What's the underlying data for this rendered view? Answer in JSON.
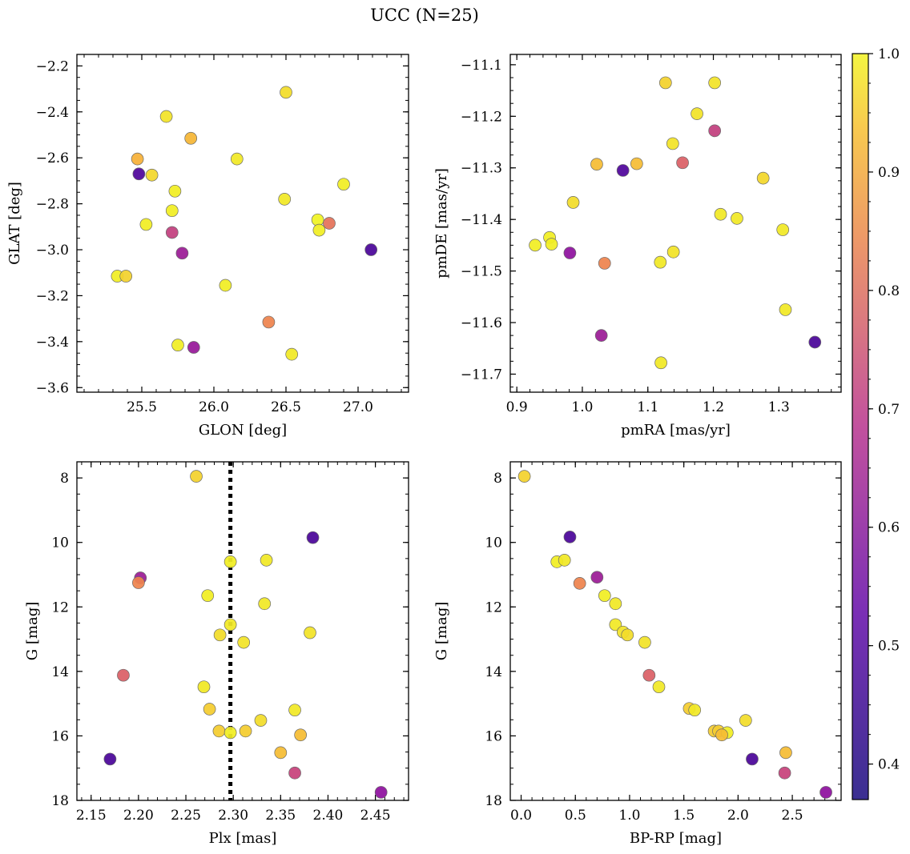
{
  "figure": {
    "title": "UCC (N=25)"
  },
  "chart_data": [
    {
      "type": "scatter",
      "xlabel": "GLON [deg]",
      "ylabel": "GLAT [deg]",
      "xlim": [
        25.05,
        27.35
      ],
      "ylim": [
        -3.62,
        -2.15
      ],
      "xticks": [
        25.5,
        26.0,
        26.5,
        27.0
      ],
      "yticks": [
        -3.6,
        -3.4,
        -3.2,
        -3.0,
        -2.8,
        -2.6,
        -2.4,
        -2.2
      ],
      "xticklabels": [
        "25.5",
        "26.0",
        "26.5",
        "27.0"
      ],
      "yticklabels": [
        "−3.6",
        "−3.4",
        "−3.2",
        "−3.0",
        "−2.8",
        "−2.6",
        "−2.4",
        "−2.2"
      ],
      "points": [
        {
          "x": 26.5,
          "y": -2.315,
          "c": 0.95
        },
        {
          "x": 25.67,
          "y": -2.42,
          "c": 0.96
        },
        {
          "x": 25.84,
          "y": -2.515,
          "c": 0.88
        },
        {
          "x": 26.16,
          "y": -2.605,
          "c": 0.97
        },
        {
          "x": 25.47,
          "y": -2.605,
          "c": 0.87
        },
        {
          "x": 25.48,
          "y": -2.67,
          "c": 0.39
        },
        {
          "x": 25.57,
          "y": -2.675,
          "c": 0.94
        },
        {
          "x": 26.9,
          "y": -2.715,
          "c": 0.98
        },
        {
          "x": 25.73,
          "y": -2.745,
          "c": 0.98
        },
        {
          "x": 26.49,
          "y": -2.78,
          "c": 0.97
        },
        {
          "x": 25.71,
          "y": -2.83,
          "c": 0.98
        },
        {
          "x": 26.72,
          "y": -2.87,
          "c": 0.99
        },
        {
          "x": 26.8,
          "y": -2.885,
          "c": 0.74
        },
        {
          "x": 25.53,
          "y": -2.89,
          "c": 0.98
        },
        {
          "x": 26.73,
          "y": -2.915,
          "c": 0.98
        },
        {
          "x": 25.71,
          "y": -2.925,
          "c": 0.62
        },
        {
          "x": 27.09,
          "y": -3.0,
          "c": 0.38
        },
        {
          "x": 25.78,
          "y": -3.015,
          "c": 0.53
        },
        {
          "x": 25.33,
          "y": -3.115,
          "c": 0.98
        },
        {
          "x": 25.39,
          "y": -3.115,
          "c": 0.93
        },
        {
          "x": 26.08,
          "y": -3.155,
          "c": 0.98
        },
        {
          "x": 26.38,
          "y": -3.315,
          "c": 0.78
        },
        {
          "x": 25.75,
          "y": -3.415,
          "c": 0.98
        },
        {
          "x": 25.86,
          "y": -3.425,
          "c": 0.52
        },
        {
          "x": 26.54,
          "y": -3.455,
          "c": 0.97
        }
      ]
    },
    {
      "type": "scatter",
      "xlabel": "pmRA [mas/yr]",
      "ylabel": "pmDE [mas/yr]",
      "xlim": [
        0.89,
        1.395
      ],
      "ylim": [
        -11.735,
        -11.08
      ],
      "xticks": [
        0.9,
        1.0,
        1.1,
        1.2,
        1.3
      ],
      "yticks": [
        -11.7,
        -11.6,
        -11.5,
        -11.4,
        -11.3,
        -11.2,
        -11.1
      ],
      "xticklabels": [
        "0.9",
        "1.0",
        "1.1",
        "1.2",
        "1.3"
      ],
      "yticklabels": [
        "−11.7",
        "−11.6",
        "−11.5",
        "−11.4",
        "−11.3",
        "−11.2",
        "−11.1"
      ],
      "points": [
        {
          "x": 1.127,
          "y": -11.135,
          "c": 0.93
        },
        {
          "x": 1.202,
          "y": -11.135,
          "c": 0.96
        },
        {
          "x": 1.175,
          "y": -11.195,
          "c": 0.96
        },
        {
          "x": 1.202,
          "y": -11.228,
          "c": 0.62
        },
        {
          "x": 1.138,
          "y": -11.253,
          "c": 0.96
        },
        {
          "x": 1.022,
          "y": -11.293,
          "c": 0.89
        },
        {
          "x": 1.083,
          "y": -11.292,
          "c": 0.89
        },
        {
          "x": 1.153,
          "y": -11.29,
          "c": 0.7
        },
        {
          "x": 1.062,
          "y": -11.305,
          "c": 0.39
        },
        {
          "x": 1.276,
          "y": -11.32,
          "c": 0.94
        },
        {
          "x": 0.986,
          "y": -11.367,
          "c": 0.95
        },
        {
          "x": 1.211,
          "y": -11.39,
          "c": 0.97
        },
        {
          "x": 1.236,
          "y": -11.398,
          "c": 0.97
        },
        {
          "x": 1.306,
          "y": -11.42,
          "c": 0.97
        },
        {
          "x": 0.95,
          "y": -11.435,
          "c": 0.98
        },
        {
          "x": 0.928,
          "y": -11.45,
          "c": 0.98
        },
        {
          "x": 0.953,
          "y": -11.448,
          "c": 0.98
        },
        {
          "x": 0.981,
          "y": -11.465,
          "c": 0.5
        },
        {
          "x": 1.139,
          "y": -11.463,
          "c": 0.96
        },
        {
          "x": 1.119,
          "y": -11.483,
          "c": 0.97
        },
        {
          "x": 1.034,
          "y": -11.485,
          "c": 0.78
        },
        {
          "x": 1.31,
          "y": -11.575,
          "c": 0.97
        },
        {
          "x": 1.029,
          "y": -11.625,
          "c": 0.53
        },
        {
          "x": 1.355,
          "y": -11.638,
          "c": 0.38
        },
        {
          "x": 1.12,
          "y": -11.678,
          "c": 0.97
        }
      ]
    },
    {
      "type": "scatter",
      "xlabel": "Plx [mas]",
      "ylabel": "G [mag]",
      "xlim": [
        2.135,
        2.485
      ],
      "ylim": [
        18,
        7.5
      ],
      "y_inverted": true,
      "xticks": [
        2.15,
        2.2,
        2.25,
        2.3,
        2.35,
        2.4,
        2.45
      ],
      "yticks": [
        8,
        10,
        12,
        14,
        16,
        18
      ],
      "xticklabels": [
        "2.15",
        "2.20",
        "2.25",
        "2.30",
        "2.35",
        "2.40",
        "2.45"
      ],
      "yticklabels": [
        "8",
        "10",
        "12",
        "14",
        "16",
        "18"
      ],
      "vline": 2.297,
      "points": [
        {
          "x": 2.261,
          "y": 7.95,
          "c": 0.93
        },
        {
          "x": 2.384,
          "y": 9.85,
          "c": 0.38
        },
        {
          "x": 2.297,
          "y": 10.6,
          "c": 0.98
        },
        {
          "x": 2.335,
          "y": 10.55,
          "c": 0.97
        },
        {
          "x": 2.202,
          "y": 11.1,
          "c": 0.53
        },
        {
          "x": 2.2,
          "y": 11.25,
          "c": 0.78
        },
        {
          "x": 2.273,
          "y": 11.65,
          "c": 0.98
        },
        {
          "x": 2.333,
          "y": 11.9,
          "c": 0.97
        },
        {
          "x": 2.297,
          "y": 12.55,
          "c": 0.97
        },
        {
          "x": 2.381,
          "y": 12.8,
          "c": 0.96
        },
        {
          "x": 2.286,
          "y": 12.87,
          "c": 0.95
        },
        {
          "x": 2.311,
          "y": 13.1,
          "c": 0.96
        },
        {
          "x": 2.184,
          "y": 14.12,
          "c": 0.7
        },
        {
          "x": 2.269,
          "y": 14.48,
          "c": 0.97
        },
        {
          "x": 2.275,
          "y": 15.17,
          "c": 0.92
        },
        {
          "x": 2.365,
          "y": 15.2,
          "c": 0.97
        },
        {
          "x": 2.329,
          "y": 15.52,
          "c": 0.95
        },
        {
          "x": 2.285,
          "y": 15.85,
          "c": 0.92
        },
        {
          "x": 2.297,
          "y": 15.9,
          "c": 0.98
        },
        {
          "x": 2.313,
          "y": 15.85,
          "c": 0.92
        },
        {
          "x": 2.371,
          "y": 15.97,
          "c": 0.89
        },
        {
          "x": 2.17,
          "y": 16.72,
          "c": 0.38
        },
        {
          "x": 2.35,
          "y": 16.52,
          "c": 0.89
        },
        {
          "x": 2.365,
          "y": 17.15,
          "c": 0.63
        },
        {
          "x": 2.456,
          "y": 17.75,
          "c": 0.5
        }
      ]
    },
    {
      "type": "scatter",
      "xlabel": "BP-RP [mag]",
      "ylabel": "G [mag]",
      "xlim": [
        -0.1,
        2.95
      ],
      "ylim": [
        18,
        7.5
      ],
      "y_inverted": true,
      "xticks": [
        0.0,
        0.5,
        1.0,
        1.5,
        2.0,
        2.5
      ],
      "yticks": [
        8,
        10,
        12,
        14,
        16,
        18
      ],
      "xticklabels": [
        "0.0",
        "0.5",
        "1.0",
        "1.5",
        "2.0",
        "2.5"
      ],
      "yticklabels": [
        "8",
        "10",
        "12",
        "14",
        "16",
        "18"
      ],
      "points": [
        {
          "x": 0.03,
          "y": 7.95,
          "c": 0.93
        },
        {
          "x": 0.45,
          "y": 9.83,
          "c": 0.38
        },
        {
          "x": 0.33,
          "y": 10.6,
          "c": 0.98
        },
        {
          "x": 0.4,
          "y": 10.55,
          "c": 0.97
        },
        {
          "x": 0.7,
          "y": 11.08,
          "c": 0.53
        },
        {
          "x": 0.54,
          "y": 11.27,
          "c": 0.78
        },
        {
          "x": 0.77,
          "y": 11.65,
          "c": 0.98
        },
        {
          "x": 0.87,
          "y": 11.9,
          "c": 0.97
        },
        {
          "x": 0.87,
          "y": 12.55,
          "c": 0.97
        },
        {
          "x": 0.94,
          "y": 12.78,
          "c": 0.96
        },
        {
          "x": 0.98,
          "y": 12.87,
          "c": 0.95
        },
        {
          "x": 1.14,
          "y": 13.1,
          "c": 0.96
        },
        {
          "x": 1.18,
          "y": 14.12,
          "c": 0.7
        },
        {
          "x": 1.27,
          "y": 14.48,
          "c": 0.97
        },
        {
          "x": 1.55,
          "y": 15.15,
          "c": 0.92
        },
        {
          "x": 1.6,
          "y": 15.2,
          "c": 0.97
        },
        {
          "x": 2.07,
          "y": 15.52,
          "c": 0.95
        },
        {
          "x": 1.78,
          "y": 15.85,
          "c": 0.92
        },
        {
          "x": 1.82,
          "y": 15.85,
          "c": 0.92
        },
        {
          "x": 1.9,
          "y": 15.9,
          "c": 0.98
        },
        {
          "x": 1.85,
          "y": 15.97,
          "c": 0.89
        },
        {
          "x": 2.13,
          "y": 16.72,
          "c": 0.38
        },
        {
          "x": 2.44,
          "y": 16.52,
          "c": 0.89
        },
        {
          "x": 2.43,
          "y": 17.15,
          "c": 0.63
        },
        {
          "x": 2.81,
          "y": 17.75,
          "c": 0.5
        }
      ]
    }
  ],
  "colorbar": {
    "type": "colorbar",
    "colormap": "plasma",
    "range": [
      0.37,
      1.0
    ],
    "ticks": [
      0.4,
      0.5,
      0.6,
      0.7,
      0.8,
      0.9,
      1.0
    ],
    "ticklabels": [
      "0.4",
      "0.5",
      "0.6",
      "0.7",
      "0.8",
      "0.9",
      "1.0"
    ]
  }
}
